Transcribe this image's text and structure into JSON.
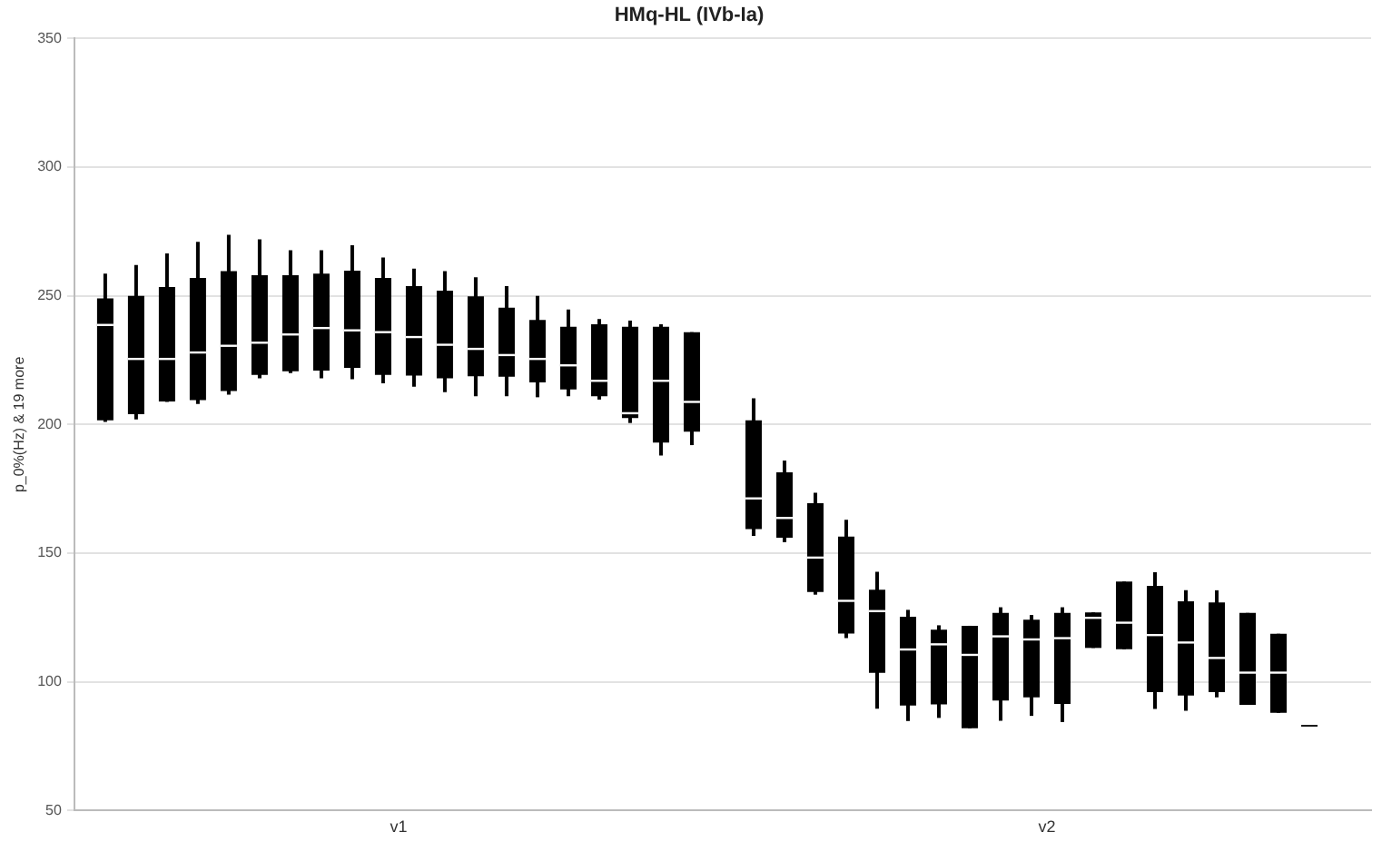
{
  "chart_data": {
    "type": "box",
    "title": "HMq-HL (IVb-Ia)",
    "ylabel": "p_0%(Hz) & 19 more",
    "categories": [
      "v1",
      "v2"
    ],
    "ylim": [
      50,
      350
    ],
    "yticks": [
      50,
      100,
      150,
      200,
      250,
      300,
      350
    ],
    "grid": "y",
    "legend": false,
    "series": [
      {
        "color": "#000000",
        "boxes": [
          {
            "low": 201,
            "q1": 201.6,
            "median": 238.7,
            "q3": 249,
            "high": 258.6
          },
          {
            "low": 156.7,
            "q1": 159.4,
            "median": 171.3,
            "q3": 201.6,
            "high": 210.2
          }
        ]
      },
      {
        "color": "#000000",
        "boxes": [
          {
            "low": 202,
            "q1": 204,
            "median": 225.5,
            "q3": 250,
            "high": 262
          },
          {
            "low": 154.3,
            "q1": 156,
            "median": 163.7,
            "q3": 181.4,
            "high": 186
          }
        ]
      },
      {
        "color": "#000000",
        "boxes": [
          {
            "low": 208.8,
            "q1": 209,
            "median": 225.5,
            "q3": 253.4,
            "high": 266.5
          },
          {
            "low": 133.9,
            "q1": 134.9,
            "median": 148.3,
            "q3": 169.4,
            "high": 173.5
          }
        ]
      },
      {
        "color": "#000000",
        "boxes": [
          {
            "low": 208,
            "q1": 209.5,
            "median": 228,
            "q3": 257,
            "high": 271
          },
          {
            "low": 117,
            "q1": 118.8,
            "median": 131.5,
            "q3": 156.5,
            "high": 163
          }
        ]
      },
      {
        "color": "#000000",
        "boxes": [
          {
            "low": 211.6,
            "q1": 213,
            "median": 230.6,
            "q3": 259.6,
            "high": 273.7
          },
          {
            "low": 89.6,
            "q1": 103.5,
            "median": 127.5,
            "q3": 135.8,
            "high": 142.8
          }
        ]
      },
      {
        "color": "#000000",
        "boxes": [
          {
            "low": 218,
            "q1": 219.3,
            "median": 231.8,
            "q3": 258,
            "high": 272
          },
          {
            "low": 84.8,
            "q1": 90.8,
            "median": 112.6,
            "q3": 125.3,
            "high": 128
          }
        ]
      },
      {
        "color": "#000000",
        "boxes": [
          {
            "low": 220,
            "q1": 220.7,
            "median": 235,
            "q3": 258,
            "high": 267.7
          },
          {
            "low": 86,
            "q1": 91.3,
            "median": 114.6,
            "q3": 120.3,
            "high": 122
          }
        ]
      },
      {
        "color": "#000000",
        "boxes": [
          {
            "low": 218,
            "q1": 221,
            "median": 237.5,
            "q3": 258.6,
            "high": 267.7
          },
          {
            "low": 82,
            "q1": 82,
            "median": 110.5,
            "q3": 121.8,
            "high": 121.8
          }
        ]
      },
      {
        "color": "#000000",
        "boxes": [
          {
            "low": 217.6,
            "q1": 222,
            "median": 236.6,
            "q3": 259.8,
            "high": 269.7
          },
          {
            "low": 84.9,
            "q1": 92.8,
            "median": 117.7,
            "q3": 126.8,
            "high": 129
          }
        ]
      },
      {
        "color": "#000000",
        "boxes": [
          {
            "low": 216,
            "q1": 219.3,
            "median": 235.9,
            "q3": 257,
            "high": 264.9
          },
          {
            "low": 86.8,
            "q1": 94,
            "median": 116.5,
            "q3": 124.2,
            "high": 126
          }
        ]
      },
      {
        "color": "#000000",
        "boxes": [
          {
            "low": 214.7,
            "q1": 219,
            "median": 234,
            "q3": 253.8,
            "high": 260.6
          },
          {
            "low": 84.4,
            "q1": 91.4,
            "median": 117,
            "q3": 126.8,
            "high": 129
          }
        ]
      },
      {
        "color": "#000000",
        "boxes": [
          {
            "low": 212.6,
            "q1": 218,
            "median": 231,
            "q3": 252,
            "high": 259.6
          },
          {
            "low": 113.2,
            "q1": 113.2,
            "median": 124.9,
            "q3": 127,
            "high": 127
          }
        ]
      },
      {
        "color": "#000000",
        "boxes": [
          {
            "low": 211,
            "q1": 218.8,
            "median": 229.4,
            "q3": 249.8,
            "high": 257.2
          },
          {
            "low": 112.7,
            "q1": 112.7,
            "median": 123,
            "q3": 139,
            "high": 139
          }
        ]
      },
      {
        "color": "#000000",
        "boxes": [
          {
            "low": 211,
            "q1": 218.6,
            "median": 227,
            "q3": 245.4,
            "high": 253.8
          },
          {
            "low": 89.5,
            "q1": 96,
            "median": 118.2,
            "q3": 137.3,
            "high": 142.6
          }
        ]
      },
      {
        "color": "#000000",
        "boxes": [
          {
            "low": 210.6,
            "q1": 216.4,
            "median": 225.5,
            "q3": 240.6,
            "high": 250
          },
          {
            "low": 88.8,
            "q1": 94.7,
            "median": 115.3,
            "q3": 131.3,
            "high": 135.6
          }
        ]
      },
      {
        "color": "#000000",
        "boxes": [
          {
            "low": 211,
            "q1": 213.6,
            "median": 223,
            "q3": 238,
            "high": 244.7
          },
          {
            "low": 94,
            "q1": 96,
            "median": 109.3,
            "q3": 130.9,
            "high": 135.6
          }
        ]
      },
      {
        "color": "#000000",
        "boxes": [
          {
            "low": 209.7,
            "q1": 211,
            "median": 217,
            "q3": 239,
            "high": 241
          },
          {
            "low": 91.1,
            "q1": 91.1,
            "median": 103.6,
            "q3": 126.8,
            "high": 126.8
          }
        ]
      },
      {
        "color": "#000000",
        "boxes": [
          {
            "low": 200.6,
            "q1": 202.5,
            "median": 204.4,
            "q3": 238,
            "high": 240.4
          },
          {
            "low": 88,
            "q1": 88,
            "median": 103.6,
            "q3": 118.7,
            "high": 118.7
          }
        ]
      },
      {
        "color": "#000000",
        "boxes": [
          {
            "low": 188,
            "q1": 193,
            "median": 217,
            "q3": 238,
            "high": 239
          },
          {
            "low": 83.7,
            "q1": 83.7,
            "median": 83.7,
            "q3": 83.7,
            "high": 83.7
          }
        ]
      },
      {
        "color": "#000000",
        "boxes": [
          {
            "low": 192,
            "q1": 197.2,
            "median": 208.8,
            "q3": 235.9,
            "high": 235.9
          },
          null
        ]
      }
    ]
  }
}
